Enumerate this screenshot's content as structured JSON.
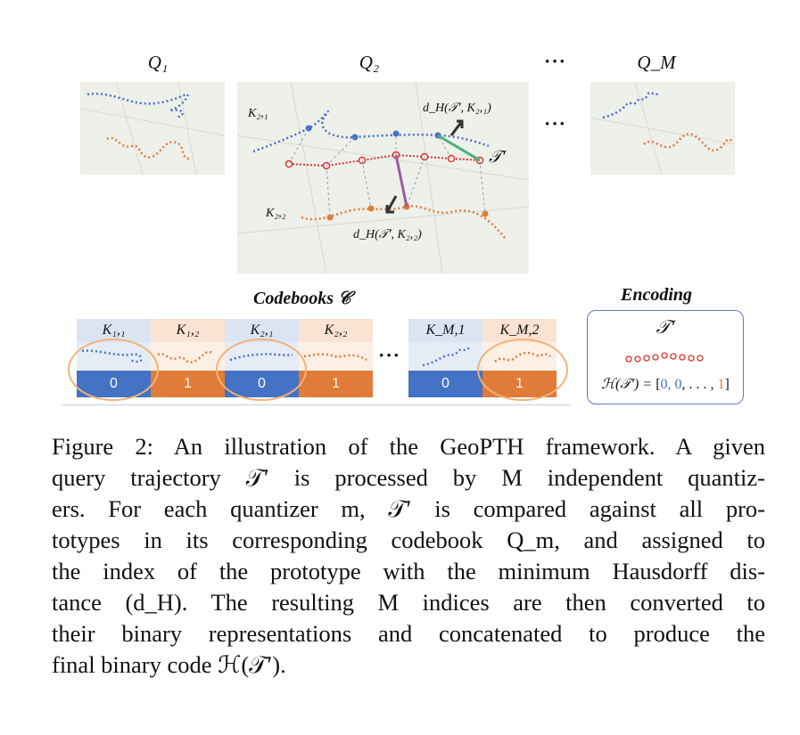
{
  "figure": {
    "q1_label": "Q₁",
    "q2_label": "Q₂",
    "qm_label": "Q_M",
    "ellipsis": "···",
    "k21_label": "K₂,₁",
    "k22_label": "K₂,₂",
    "dh_k21": "d_H(𝒯′, K₂,₁)",
    "dh_k22": "d_H(𝒯′, K₂,₂)",
    "t_prime": "𝒯′",
    "codebooks_heading": "Codebooks 𝒞",
    "encoding_heading": "Encoding",
    "codebook_cells": [
      {
        "label": "K₁,₁",
        "bit": "0"
      },
      {
        "label": "K₁,₂",
        "bit": "1"
      },
      {
        "label": "K₂,₁",
        "bit": "0"
      },
      {
        "label": "K₂,₂",
        "bit": "1"
      },
      {
        "label": "K_M,1",
        "bit": "0"
      },
      {
        "label": "K_M,2",
        "bit": "1"
      }
    ],
    "encoding_t_prime": "𝒯′",
    "encoding_formula_prefix": "ℋ(𝒯′) = ",
    "encoding_formula_open": "[",
    "encoding_formula_zeros": "0, 0",
    "encoding_formula_mid": ", . . . , ",
    "encoding_formula_one": "1",
    "encoding_formula_close": "]",
    "colors": {
      "blue": "#4472c4",
      "orange": "#e07b39",
      "red": "#d9342b"
    }
  },
  "caption": {
    "lines": [
      "Figure 2: An illustration of the GeoPTH framework. A given",
      "query trajectory 𝒯′ is processed by M independent quantiz-",
      "ers. For each quantizer m, 𝒯′ is compared against all pro-",
      "totypes in its corresponding codebook Q_m, and assigned to",
      "the index of the prototype with the minimum Hausdorff dis-",
      "tance (d_H). The resulting M indices are then converted to",
      "their binary representations and concatenated to produce the",
      "final binary code ℋ(𝒯′)."
    ]
  }
}
